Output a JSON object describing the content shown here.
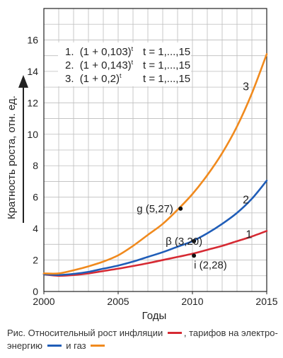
{
  "chart_data": {
    "type": "line",
    "xlabel": "Годы",
    "ylabel": "Кратность роста, отн. ед.",
    "xlim": [
      2000,
      2015
    ],
    "ylim": [
      0,
      18
    ],
    "x_ticks": [
      "2000",
      "2005",
      "2010",
      "2015"
    ],
    "y_ticks": [
      "0",
      "2",
      "4",
      "6",
      "8",
      "10",
      "12",
      "14",
      "16"
    ],
    "grid": true,
    "formulas": [
      {
        "num": "1.",
        "base": "(1 + 0,103)",
        "exp": "t",
        "range": "t = 1,...,15"
      },
      {
        "num": "2.",
        "base": "(1 + 0,143)",
        "exp": "t",
        "range": "t = 1,...,15"
      },
      {
        "num": "3.",
        "base": "(1 + 0,2)",
        "exp": "t",
        "range": "t = 1,...,15"
      }
    ],
    "series": [
      {
        "label": "1",
        "color": "#d62a33",
        "rate": 0.103,
        "points": [
          [
            2000,
            1.1
          ],
          [
            2001,
            1.0
          ],
          [
            2002,
            1.05
          ],
          [
            2003,
            1.15
          ],
          [
            2004,
            1.3
          ],
          [
            2005,
            1.45
          ],
          [
            2006,
            1.62
          ],
          [
            2007,
            1.8
          ],
          [
            2008,
            2.0
          ],
          [
            2009,
            2.2
          ],
          [
            2010,
            2.4
          ],
          [
            2011,
            2.65
          ],
          [
            2012,
            2.9
          ],
          [
            2013,
            3.2
          ],
          [
            2014,
            3.5
          ],
          [
            2015,
            3.85
          ]
        ]
      },
      {
        "label": "2",
        "color": "#1f5db8",
        "rate": 0.143,
        "points": [
          [
            2000,
            1.1
          ],
          [
            2001,
            1.05
          ],
          [
            2002,
            1.12
          ],
          [
            2003,
            1.25
          ],
          [
            2004,
            1.45
          ],
          [
            2005,
            1.65
          ],
          [
            2006,
            1.9
          ],
          [
            2007,
            2.2
          ],
          [
            2008,
            2.5
          ],
          [
            2009,
            2.85
          ],
          [
            2010,
            3.2
          ],
          [
            2011,
            3.7
          ],
          [
            2012,
            4.3
          ],
          [
            2013,
            5.0
          ],
          [
            2014,
            5.9
          ],
          [
            2015,
            7.05
          ]
        ]
      },
      {
        "label": "3",
        "color": "#f08a1e",
        "rate": 0.2,
        "points": [
          [
            2000,
            1.15
          ],
          [
            2001,
            1.15
          ],
          [
            2002,
            1.35
          ],
          [
            2003,
            1.6
          ],
          [
            2004,
            1.9
          ],
          [
            2005,
            2.3
          ],
          [
            2006,
            2.9
          ],
          [
            2007,
            3.6
          ],
          [
            2008,
            4.3
          ],
          [
            2009,
            5.2
          ],
          [
            2010,
            6.2
          ],
          [
            2011,
            7.4
          ],
          [
            2012,
            8.8
          ],
          [
            2013,
            10.5
          ],
          [
            2014,
            12.6
          ],
          [
            2015,
            15.1
          ]
        ]
      }
    ],
    "annotations": [
      {
        "text": "g (5,27)",
        "x": 2009.2,
        "y": 5.27
      },
      {
        "text": "β (3,20)",
        "x": 2010.1,
        "y": 3.2
      },
      {
        "text": "i (2,28)",
        "x": 2010.1,
        "y": 2.28
      }
    ]
  },
  "caption": {
    "lead": "Рис.",
    "text1": " Относительный рост инфляции ",
    "text2": ", тарифов на электро-энергию ",
    "text3": " и газ "
  }
}
